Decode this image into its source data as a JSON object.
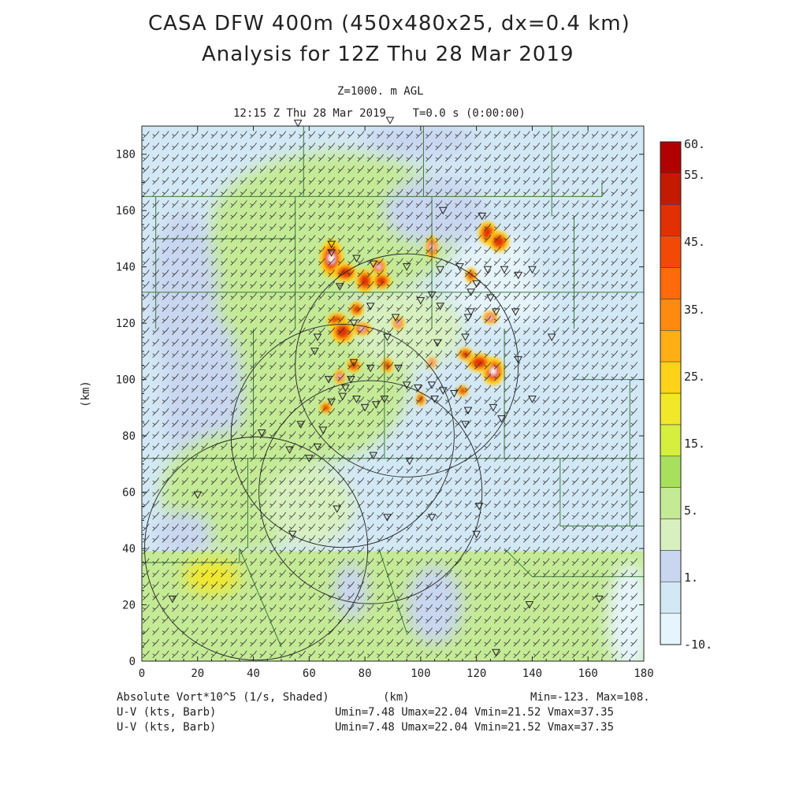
{
  "header": {
    "title": "CASA DFW 400m (450x480x25, dx=0.4 km)",
    "subtitle": "Analysis for 12Z Thu 28 Mar 2019",
    "level": "Z=1000. m AGL",
    "time": "12:15 Z Thu 28 Mar 2019    T=0.0 s (0:00:00)"
  },
  "footer": {
    "vort_label": "Absolute Vort*10^5 (1/s, Shaded)",
    "xunit": "(km)",
    "vort_range": "Min=-123. Max=108.",
    "wind1_label": "U-V (kts, Barb)",
    "wind1_stats": "Umin=7.48 Umax=22.04 Vmin=21.52 Vmax=37.35",
    "wind2_label": "U-V (kts, Barb)",
    "wind2_stats": "Umin=7.48 Umax=22.04 Vmin=21.52 Vmax=37.35"
  },
  "chart_data": {
    "type": "heatmap",
    "xlabel": "(km)",
    "ylabel": "(km)",
    "xlim": [
      0,
      180
    ],
    "ylim": [
      0,
      190
    ],
    "xticks": [
      0,
      20,
      40,
      60,
      80,
      100,
      120,
      140,
      160,
      180
    ],
    "yticks": [
      0,
      20,
      40,
      60,
      80,
      100,
      120,
      140,
      160,
      180
    ],
    "colorbar": {
      "levels": [
        -10,
        1,
        5,
        15,
        25,
        35,
        45,
        55,
        60
      ],
      "labels": [
        "-10.",
        "1.",
        "5.",
        "15.",
        "25.",
        "35.",
        "45.",
        "55.",
        "60."
      ],
      "colors": [
        "#e6f4fb",
        "#d3e8f5",
        "#c9d6f0",
        "#d8f0c0",
        "#c4ea96",
        "#a8e05e",
        "#d6ef3e",
        "#f2e82a",
        "#ffd21a",
        "#ffae14",
        "#ff8a10",
        "#ff6a0a",
        "#f24a06",
        "#e03004",
        "#c41a02",
        "#b00000"
      ]
    },
    "fields": [
      "Absolute Vort*10^5 (1/s, Shaded)",
      "U-V (kts, Barb)"
    ],
    "vort_min": -123,
    "vort_max": 108,
    "wind_stats": {
      "Umin": 7.48,
      "Umax": 22.04,
      "Vmin": 21.52,
      "Vmax": 37.35
    },
    "radar_rings": [
      {
        "cx": 95,
        "cy": 105,
        "r": 40
      },
      {
        "cx": 72,
        "cy": 80,
        "r": 40
      },
      {
        "cx": 82,
        "cy": 60,
        "r": 40
      },
      {
        "cx": 41,
        "cy": 40,
        "r": 40
      }
    ],
    "radar_sites_xy": [
      [
        56,
        191
      ],
      [
        89,
        192
      ],
      [
        108,
        160
      ],
      [
        122,
        158
      ],
      [
        68,
        148
      ],
      [
        68,
        145
      ],
      [
        77,
        143
      ],
      [
        83,
        141
      ],
      [
        95,
        140
      ],
      [
        107,
        139
      ],
      [
        114,
        140
      ],
      [
        124,
        139
      ],
      [
        130,
        139
      ],
      [
        140,
        139
      ],
      [
        135,
        137
      ],
      [
        120,
        134
      ],
      [
        71,
        133
      ],
      [
        118,
        131
      ],
      [
        104,
        130
      ],
      [
        125,
        129
      ],
      [
        100,
        128
      ],
      [
        82,
        126
      ],
      [
        107,
        126
      ],
      [
        118,
        124
      ],
      [
        127,
        124
      ],
      [
        134,
        124
      ],
      [
        117,
        122
      ],
      [
        91,
        122
      ],
      [
        76,
        120
      ],
      [
        63,
        115
      ],
      [
        116,
        115
      ],
      [
        106,
        113
      ],
      [
        88,
        115
      ],
      [
        62,
        110
      ],
      [
        147,
        115
      ],
      [
        135,
        107
      ],
      [
        76,
        106
      ],
      [
        82,
        104
      ],
      [
        92,
        104
      ],
      [
        67,
        100
      ],
      [
        75,
        100
      ],
      [
        73,
        97
      ],
      [
        95,
        98
      ],
      [
        99,
        97
      ],
      [
        104,
        98
      ],
      [
        108,
        96
      ],
      [
        105,
        93
      ],
      [
        112,
        95
      ],
      [
        140,
        93
      ],
      [
        87,
        93
      ],
      [
        77,
        93
      ],
      [
        72,
        94
      ],
      [
        68,
        92
      ],
      [
        84,
        91
      ],
      [
        117,
        89
      ],
      [
        80,
        90
      ],
      [
        126,
        90
      ],
      [
        129,
        86
      ],
      [
        116,
        84
      ],
      [
        65,
        82
      ],
      [
        57,
        84
      ],
      [
        43,
        81
      ],
      [
        63,
        76
      ],
      [
        53,
        75
      ],
      [
        83,
        73
      ],
      [
        60,
        72
      ],
      [
        96,
        71
      ],
      [
        20,
        59
      ],
      [
        70,
        54
      ],
      [
        88,
        51
      ],
      [
        104,
        51
      ],
      [
        121,
        55
      ],
      [
        120,
        45
      ],
      [
        54,
        45
      ],
      [
        11,
        22
      ],
      [
        139,
        20
      ],
      [
        164,
        22
      ],
      [
        127,
        3
      ]
    ]
  }
}
